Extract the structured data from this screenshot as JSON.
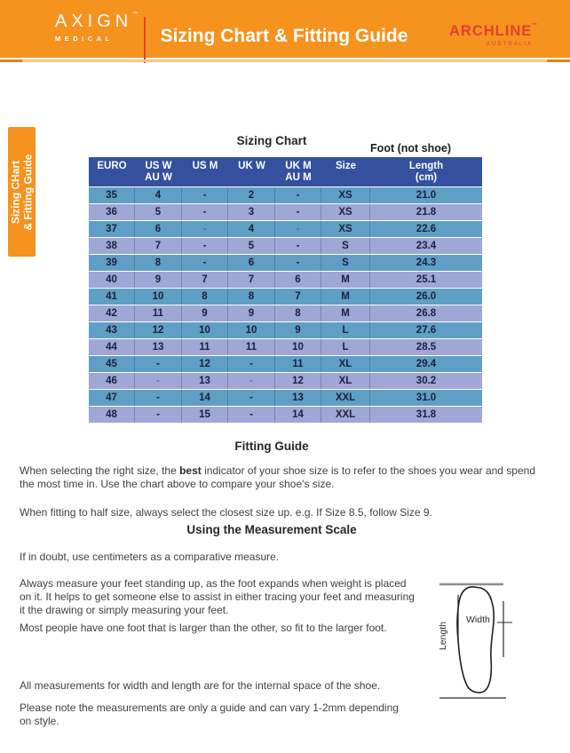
{
  "colors": {
    "banner_orange": "#F6921E",
    "brand_red": "#E23F30",
    "header_blue": "#34509E",
    "row_blue": "#5F9FC5",
    "row_periwinkle": "#9EA7D5"
  },
  "banner": {
    "brand_left_name": "AXIGN",
    "brand_left_tm": "™",
    "brand_left_sub": "MEDICAL",
    "title": "Sizing Chart & Fitting Guide",
    "brand_right_name": "ARCHLINE",
    "brand_right_tm": "™",
    "brand_right_sub": "AUSTRALIA"
  },
  "side_tab": {
    "line1": "Sizing CHart",
    "line2": "& Fitting Guide"
  },
  "chart_section": {
    "title": "Sizing Chart",
    "foot_note": "Foot (not shoe)"
  },
  "chart_data": {
    "type": "table",
    "title": "Sizing Chart",
    "columns": [
      [
        "EURO"
      ],
      [
        "US W",
        "AU W"
      ],
      [
        "US M"
      ],
      [
        "UK W"
      ],
      [
        "UK M",
        "AU M"
      ],
      [
        "Size"
      ],
      [
        "Length",
        "(cm)"
      ]
    ],
    "rows": [
      {
        "cells": [
          "35",
          "4",
          "-",
          "2",
          "-",
          "XS",
          "21.0"
        ]
      },
      {
        "cells": [
          "36",
          "5",
          "-",
          "3",
          "-",
          "XS",
          "21.8"
        ]
      },
      {
        "cells": [
          "37",
          "6",
          "-",
          "4",
          "-",
          "XS",
          "22.6"
        ],
        "light_dashes": true
      },
      {
        "cells": [
          "38",
          "7",
          "-",
          "5",
          "-",
          "S",
          "23.4"
        ]
      },
      {
        "cells": [
          "39",
          "8",
          "-",
          "6",
          "-",
          "S",
          "24.3"
        ]
      },
      {
        "cells": [
          "40",
          "9",
          "7",
          "7",
          "6",
          "M",
          "25.1"
        ]
      },
      {
        "cells": [
          "41",
          "10",
          "8",
          "8",
          "7",
          "M",
          "26.0"
        ]
      },
      {
        "cells": [
          "42",
          "11",
          "9",
          "9",
          "8",
          "M",
          "26.8"
        ]
      },
      {
        "cells": [
          "43",
          "12",
          "10",
          "10",
          "9",
          "L",
          "27.6"
        ]
      },
      {
        "cells": [
          "44",
          "13",
          "11",
          "11",
          "10",
          "L",
          "28.5"
        ]
      },
      {
        "cells": [
          "45",
          "-",
          "12",
          "-",
          "11",
          "XL",
          "29.4"
        ]
      },
      {
        "cells": [
          "46",
          "-",
          "13",
          "-",
          "12",
          "XL",
          "30.2"
        ],
        "light_dashes": true
      },
      {
        "cells": [
          "47",
          "-",
          "14",
          "-",
          "13",
          "XXL",
          "31.0"
        ]
      },
      {
        "cells": [
          "48",
          "-",
          "15",
          "-",
          "14",
          "XXL",
          "31.8"
        ]
      }
    ]
  },
  "fitting_guide": {
    "heading": "Fitting Guide",
    "p1_pre": "When selecting the right size, the ",
    "p1_bold": "best",
    "p1_post": " indicator of your shoe size is to refer to the shoes you wear and spend\nthe most time in. Use the chart above to compare your shoe's size.",
    "p2": "When fitting to half size, always select the closest size up. e.g. If Size 8.5, follow Size 9."
  },
  "measurement": {
    "heading": "Using the Measurement Scale",
    "p1": "If in doubt, use centimeters as a comparative measure.",
    "p2": "Always measure your feet standing up, as the foot expands when weight is placed\non it. It helps to get someone else to assist in either tracing your feet and measuring\nit the drawing or simply measuring your feet.",
    "p3": "Most people have one foot that is larger than the other, so fit to the larger foot.",
    "p4": "All measurements for width and length are for the internal space of the shoe.",
    "p5": "Please note the measurements are only a guide and can vary 1-2mm depending\non style."
  },
  "diagram": {
    "width_label": "Width",
    "length_label": "Length"
  }
}
